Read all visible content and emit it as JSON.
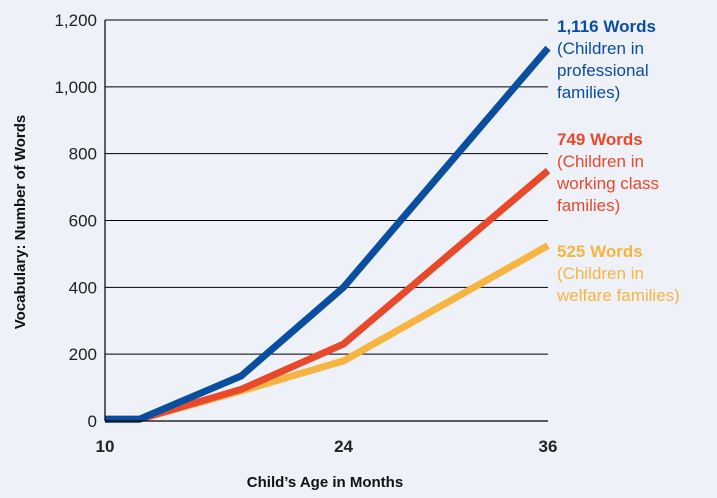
{
  "chart_data": {
    "type": "line",
    "xlabel": "Child’s Age in Months",
    "ylabel": "Vocabulary: Number of Words",
    "xlim": [
      10,
      36
    ],
    "ylim": [
      0,
      1200
    ],
    "x_ticks": [
      "10",
      "24",
      "36"
    ],
    "y_ticks": [
      "0",
      "200",
      "400",
      "600",
      "800",
      "1,000",
      "1,200"
    ],
    "grid": "horizontal",
    "series": [
      {
        "color": "#0a4ea0",
        "points": [
          [
            10,
            5
          ],
          [
            12,
            5
          ],
          [
            18,
            135
          ],
          [
            24,
            400
          ],
          [
            36,
            1116
          ]
        ],
        "annotation": {
          "value_label": "1,116 Words",
          "lines": [
            "(Children in",
            "professional",
            "families)"
          ]
        }
      },
      {
        "color": "#e8492b",
        "points": [
          [
            10,
            5
          ],
          [
            12,
            5
          ],
          [
            18,
            95
          ],
          [
            24,
            230
          ],
          [
            36,
            749
          ]
        ],
        "annotation": {
          "value_label": "749 Words",
          "lines": [
            "(Children in",
            "working class",
            "families)"
          ]
        }
      },
      {
        "color": "#f7b440",
        "points": [
          [
            10,
            5
          ],
          [
            12,
            5
          ],
          [
            18,
            90
          ],
          [
            24,
            180
          ],
          [
            36,
            525
          ]
        ],
        "annotation": {
          "value_label": "525 Words",
          "lines": [
            "(Children in",
            "welfare families)"
          ]
        }
      }
    ]
  }
}
